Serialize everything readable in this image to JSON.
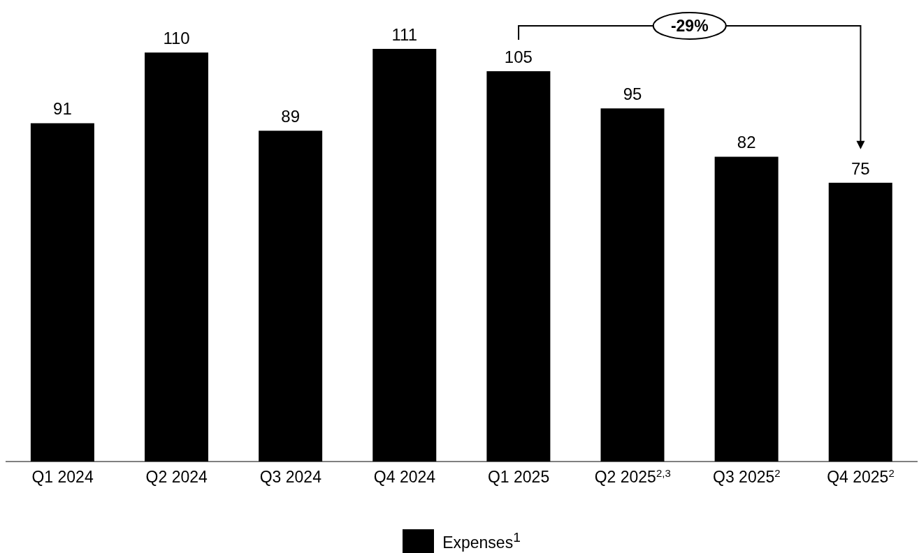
{
  "chart_data": {
    "type": "bar",
    "categories": [
      "Q1 2024",
      "Q2 2024",
      "Q3 2024",
      "Q4 2024",
      "Q1 2025",
      "Q2 2025$^{2,3}$",
      "Q3 2025$^{2}$",
      "Q4 2025$^{2}$"
    ],
    "series": [
      {
        "name": "Expenses$^{1}$",
        "color": "#000000",
        "values": [
          91,
          110,
          89,
          111,
          105,
          95,
          82,
          75
        ]
      }
    ],
    "data_labels": true,
    "legend": "bottom",
    "annotations": [
      "-29%"
    ]
  }
}
